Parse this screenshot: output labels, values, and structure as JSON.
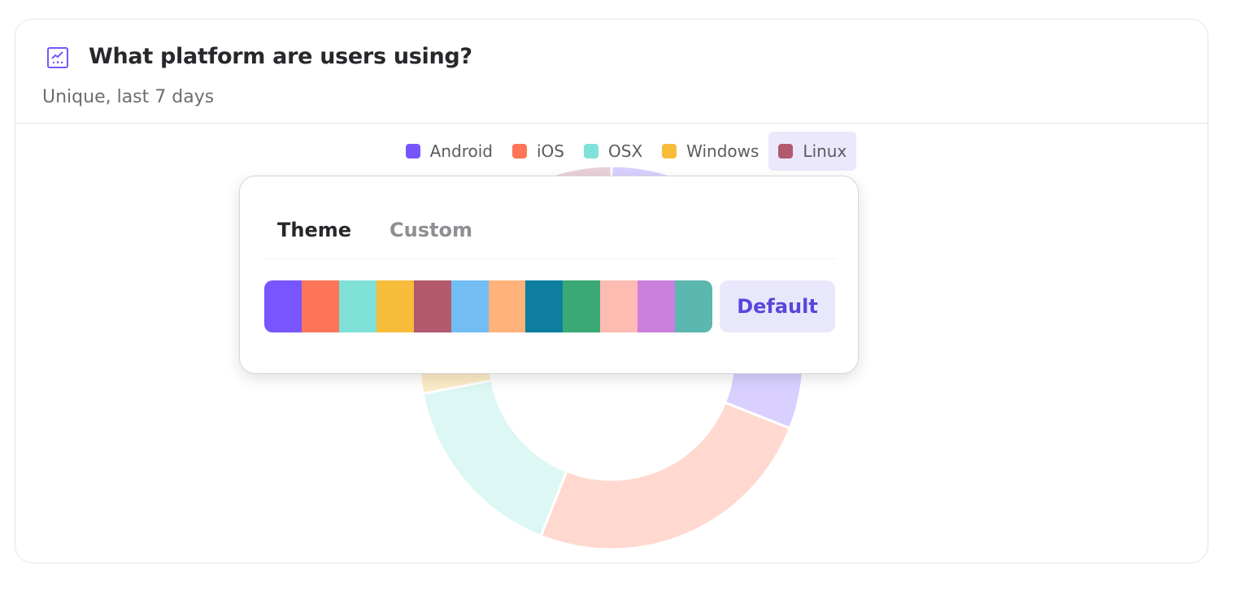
{
  "card": {
    "title": "What platform are users using?",
    "subtitle": "Unique, last 7 days",
    "icon": "line-chart-icon"
  },
  "legend": [
    {
      "label": "Android",
      "color": "#7856ff"
    },
    {
      "label": "iOS",
      "color": "#ff7557"
    },
    {
      "label": "OSX",
      "color": "#80e1d9"
    },
    {
      "label": "Windows",
      "color": "#f8bc3b"
    },
    {
      "label": "Linux",
      "color": "#b2596e",
      "active": true
    }
  ],
  "chart_data": {
    "type": "pie",
    "donut": true,
    "categories": [
      "Android",
      "iOS",
      "OSX",
      "Windows",
      "Linux"
    ],
    "values": [
      31,
      25,
      16,
      18,
      10
    ],
    "colors": [
      "#7856ff",
      "#ff7557",
      "#80e1d9",
      "#f8bc3b",
      "#b2596e"
    ],
    "faded": true
  },
  "popover": {
    "tabs": [
      {
        "label": "Theme",
        "active": true
      },
      {
        "label": "Custom",
        "active": false
      }
    ],
    "palette": [
      "#7856ff",
      "#ff7557",
      "#80e1d9",
      "#f8bc3b",
      "#b2596e",
      "#72bef4",
      "#ffb27a",
      "#0d7ea0",
      "#3ba974",
      "#febbb2",
      "#ca80dc",
      "#5bb7af"
    ],
    "default_label": "Default"
  }
}
